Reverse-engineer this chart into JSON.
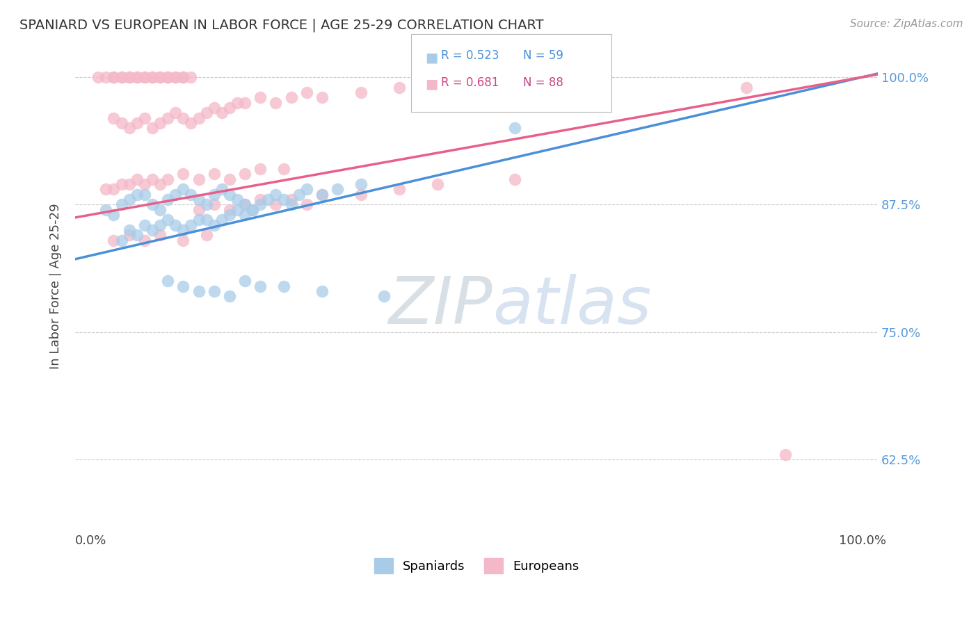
{
  "title": "SPANIARD VS EUROPEAN IN LABOR FORCE | AGE 25-29 CORRELATION CHART",
  "source_text": "Source: ZipAtlas.com",
  "ylabel": "In Labor Force | Age 25-29",
  "xlim": [
    -0.02,
    1.02
  ],
  "ylim": [
    0.555,
    1.035
  ],
  "ytick_vals": [
    0.625,
    0.75,
    0.875,
    1.0
  ],
  "ytick_labels": [
    "62.5%",
    "75.0%",
    "87.5%",
    "100.0%"
  ],
  "xtick_vals": [
    0.0,
    0.25,
    0.5,
    0.75,
    1.0
  ],
  "xtick_labels": [
    "0.0%",
    "",
    "",
    "",
    "100.0%"
  ],
  "blue_color": "#a8cce8",
  "pink_color": "#f4b8c8",
  "blue_line_color": "#4a90d9",
  "pink_line_color": "#e8608a",
  "blue_line_intercept": 0.825,
  "blue_line_slope": 0.175,
  "pink_line_intercept": 0.865,
  "pink_line_slope": 0.135,
  "sp_x": [
    0.02,
    0.03,
    0.04,
    0.05,
    0.06,
    0.07,
    0.08,
    0.09,
    0.1,
    0.11,
    0.12,
    0.13,
    0.14,
    0.15,
    0.16,
    0.17,
    0.18,
    0.19,
    0.2,
    0.21,
    0.04,
    0.05,
    0.06,
    0.07,
    0.08,
    0.09,
    0.1,
    0.11,
    0.12,
    0.13,
    0.14,
    0.15,
    0.16,
    0.17,
    0.18,
    0.19,
    0.2,
    0.21,
    0.22,
    0.23,
    0.24,
    0.25,
    0.26,
    0.27,
    0.28,
    0.3,
    0.32,
    0.35,
    0.1,
    0.12,
    0.14,
    0.16,
    0.18,
    0.2,
    0.22,
    0.25,
    0.3,
    0.38,
    0.55
  ],
  "sp_y": [
    0.87,
    0.865,
    0.875,
    0.88,
    0.885,
    0.885,
    0.875,
    0.87,
    0.88,
    0.885,
    0.89,
    0.885,
    0.88,
    0.875,
    0.885,
    0.89,
    0.885,
    0.88,
    0.875,
    0.87,
    0.84,
    0.85,
    0.845,
    0.855,
    0.85,
    0.855,
    0.86,
    0.855,
    0.85,
    0.855,
    0.86,
    0.86,
    0.855,
    0.86,
    0.865,
    0.87,
    0.865,
    0.87,
    0.875,
    0.88,
    0.885,
    0.88,
    0.875,
    0.885,
    0.89,
    0.885,
    0.89,
    0.895,
    0.8,
    0.795,
    0.79,
    0.79,
    0.785,
    0.8,
    0.795,
    0.795,
    0.79,
    0.785,
    0.95
  ],
  "eu_x": [
    0.01,
    0.02,
    0.03,
    0.03,
    0.04,
    0.04,
    0.05,
    0.05,
    0.06,
    0.06,
    0.07,
    0.07,
    0.08,
    0.08,
    0.09,
    0.09,
    0.1,
    0.1,
    0.11,
    0.11,
    0.12,
    0.12,
    0.13,
    0.03,
    0.04,
    0.05,
    0.06,
    0.07,
    0.08,
    0.09,
    0.1,
    0.11,
    0.12,
    0.13,
    0.14,
    0.15,
    0.16,
    0.17,
    0.18,
    0.19,
    0.2,
    0.22,
    0.24,
    0.26,
    0.28,
    0.3,
    0.35,
    0.4,
    0.02,
    0.03,
    0.04,
    0.05,
    0.06,
    0.07,
    0.08,
    0.09,
    0.1,
    0.12,
    0.14,
    0.16,
    0.18,
    0.2,
    0.22,
    0.25,
    0.14,
    0.16,
    0.18,
    0.2,
    0.22,
    0.24,
    0.26,
    0.28,
    0.3,
    0.35,
    0.4,
    0.45,
    0.55,
    0.65,
    0.03,
    0.05,
    0.07,
    0.09,
    0.12,
    0.15,
    0.85,
    0.9
  ],
  "eu_y": [
    1.0,
    1.0,
    1.0,
    1.0,
    1.0,
    1.0,
    1.0,
    1.0,
    1.0,
    1.0,
    1.0,
    1.0,
    1.0,
    1.0,
    1.0,
    1.0,
    1.0,
    1.0,
    1.0,
    1.0,
    1.0,
    1.0,
    1.0,
    0.96,
    0.955,
    0.95,
    0.955,
    0.96,
    0.95,
    0.955,
    0.96,
    0.965,
    0.96,
    0.955,
    0.96,
    0.965,
    0.97,
    0.965,
    0.97,
    0.975,
    0.975,
    0.98,
    0.975,
    0.98,
    0.985,
    0.98,
    0.985,
    0.99,
    0.89,
    0.89,
    0.895,
    0.895,
    0.9,
    0.895,
    0.9,
    0.895,
    0.9,
    0.905,
    0.9,
    0.905,
    0.9,
    0.905,
    0.91,
    0.91,
    0.87,
    0.875,
    0.87,
    0.875,
    0.88,
    0.875,
    0.88,
    0.875,
    0.885,
    0.885,
    0.89,
    0.895,
    0.9,
    0.99,
    0.84,
    0.845,
    0.84,
    0.845,
    0.84,
    0.845,
    0.99,
    0.63
  ]
}
